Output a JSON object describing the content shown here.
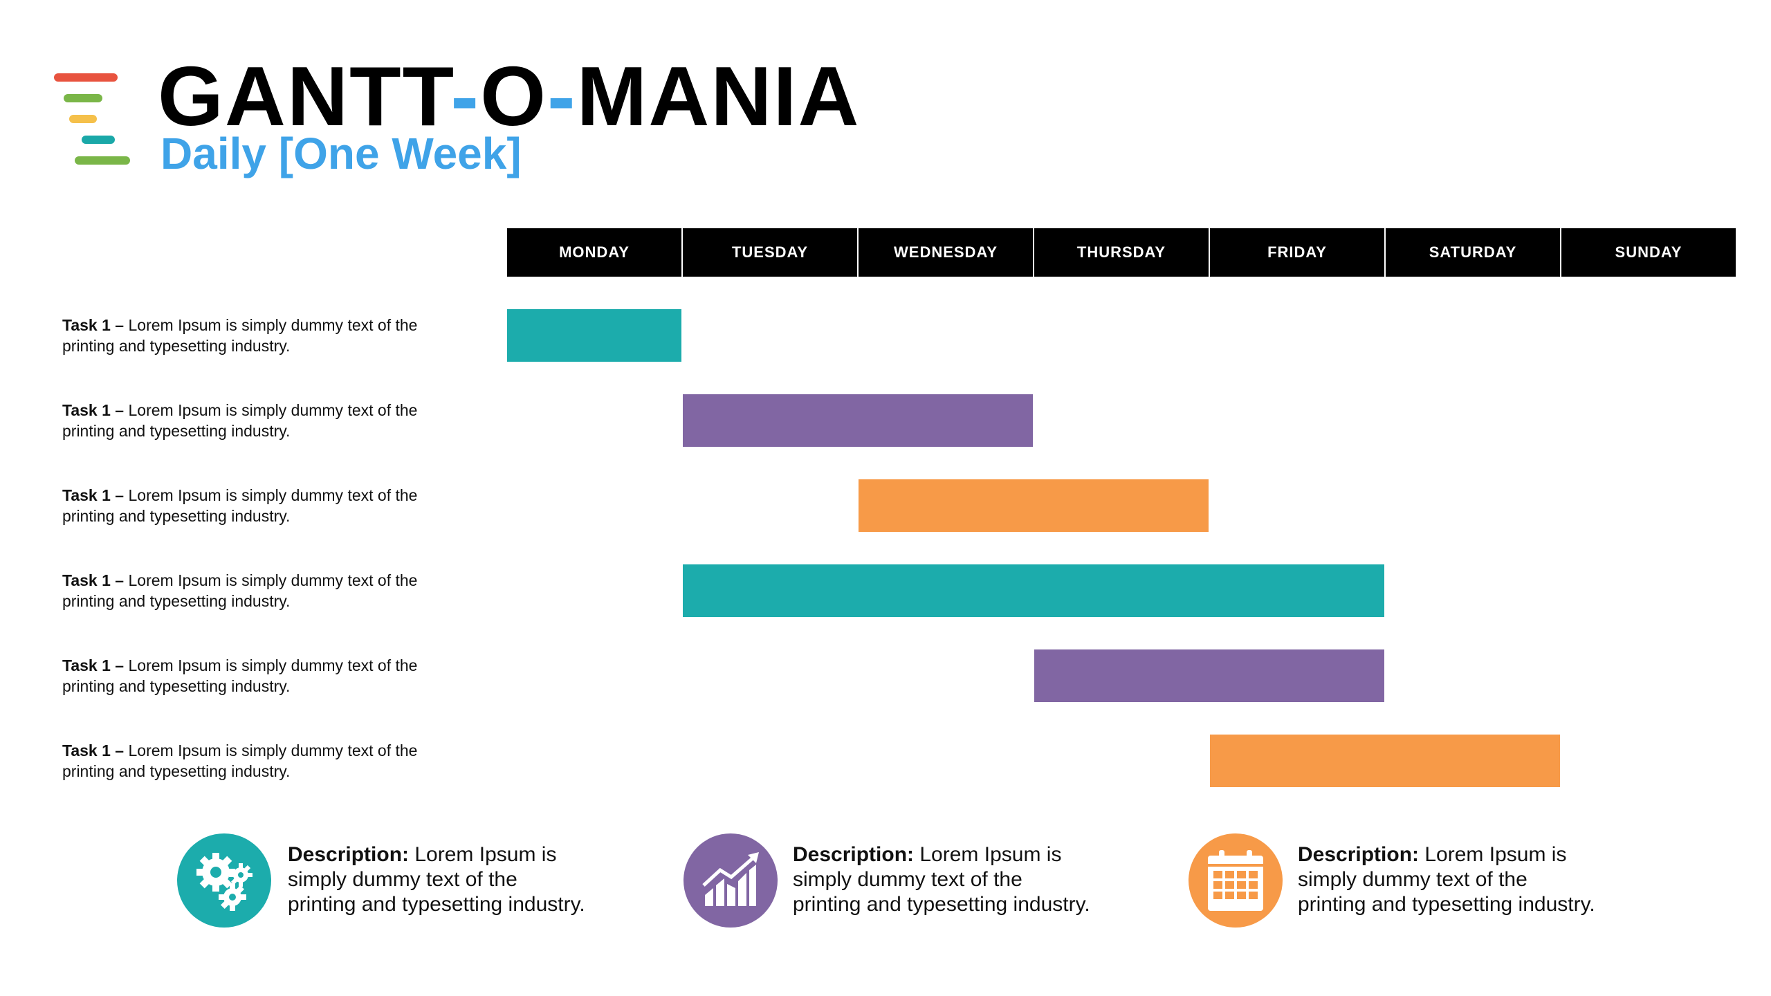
{
  "header": {
    "title_part1": "GANTT",
    "title_dash1": "-",
    "title_part2": "O",
    "title_dash2": "-",
    "title_part3": "MANIA",
    "subtitle": "Daily [One Week]"
  },
  "logo": {
    "line_colors": [
      "#e8533f",
      "#7ab648",
      "#f5c04a",
      "#1aa8a8",
      "#7ab648"
    ]
  },
  "colors": {
    "accent_blue": "#3fa3e8",
    "teal": "#1cacac",
    "purple": "#8166a3",
    "orange": "#f79a48",
    "header_bg": "#000000"
  },
  "days": [
    "MONDAY",
    "TUESDAY",
    "WEDNESDAY",
    "THURSDAY",
    "FRIDAY",
    "SATURDAY",
    "SUNDAY"
  ],
  "tasks": [
    {
      "name": "Task 1 –",
      "desc_line1": "Lorem Ipsum is simply dummy text of the",
      "desc_line2": "printing and typesetting industry.",
      "start_day": "MONDAY",
      "end_day": "MONDAY",
      "color": "#1cacac"
    },
    {
      "name": "Task 1 –",
      "desc_line1": "Lorem Ipsum is simply dummy text of the",
      "desc_line2": "printing and typesetting industry.",
      "start_day": "TUESDAY",
      "end_day": "WEDNESDAY",
      "color": "#8166a3"
    },
    {
      "name": "Task 1 –",
      "desc_line1": "Lorem Ipsum is simply dummy text of the",
      "desc_line2": "printing and typesetting industry.",
      "start_day": "WEDNESDAY",
      "end_day": "THURSDAY",
      "color": "#f79a48"
    },
    {
      "name": "Task 1 –",
      "desc_line1": "Lorem Ipsum is simply dummy text of the",
      "desc_line2": "printing and typesetting industry.",
      "start_day": "TUESDAY",
      "end_day": "FRIDAY",
      "color": "#1cacac"
    },
    {
      "name": "Task 1 –",
      "desc_line1": "Lorem Ipsum is simply dummy text of the",
      "desc_line2": "printing and typesetting industry.",
      "start_day": "THURSDAY",
      "end_day": "FRIDAY",
      "color": "#8166a3"
    },
    {
      "name": "Task 1 –",
      "desc_line1": "Lorem Ipsum is simply dummy text of the",
      "desc_line2": "printing and typesetting industry.",
      "start_day": "FRIDAY",
      "end_day": "SATURDAY",
      "color": "#f79a48"
    }
  ],
  "descriptions": [
    {
      "icon": "gears-icon",
      "color": "#1cacac",
      "label": "Description:",
      "line1": "Lorem Ipsum is",
      "line2": "simply dummy text of the",
      "line3": "printing and typesetting industry."
    },
    {
      "icon": "growth-chart-icon",
      "color": "#8166a3",
      "label": "Description:",
      "line1": "Lorem Ipsum is",
      "line2": "simply dummy text of the",
      "line3": "printing and typesetting industry."
    },
    {
      "icon": "calendar-icon",
      "color": "#f79a48",
      "label": "Description:",
      "line1": "Lorem Ipsum is",
      "line2": "simply dummy text of the",
      "line3": "printing and typesetting industry."
    }
  ]
}
